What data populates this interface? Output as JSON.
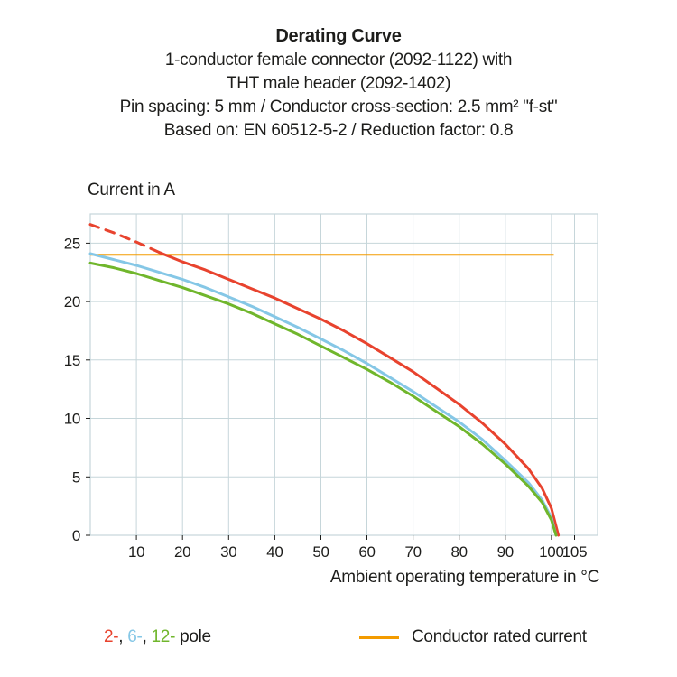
{
  "header": {
    "title": "Derating Curve",
    "subtitle_lines": [
      "1-conductor female connector (2092-1122) with",
      "THT male header (2092-1402)",
      "Pin spacing: 5 mm / Conductor cross-section: 2.5 mm² \"f-st\"",
      "Based on: EN 60512-5-2 / Reduction factor: 0.8"
    ]
  },
  "axis": {
    "y_label": "Current in A",
    "x_label": "Ambient operating temperature in °C"
  },
  "chart_data": {
    "type": "line",
    "title": "Derating Curve",
    "xlabel": "Ambient operating temperature in °C",
    "ylabel": "Current in A",
    "xlim": [
      0,
      110
    ],
    "ylim": [
      0,
      27.5
    ],
    "x_ticks": [
      10,
      20,
      30,
      40,
      50,
      60,
      70,
      80,
      90,
      100,
      105
    ],
    "y_ticks": [
      0,
      5,
      10,
      15,
      20,
      25
    ],
    "grid": true,
    "grid_color": "#c6d6da",
    "tick_color": "#1d1d1b",
    "legend_position": "bottom",
    "rated_line": {
      "name": "Conductor rated current",
      "y": 24,
      "x_start": 0,
      "x_end": 100.5,
      "color": "#f39b00"
    },
    "series": [
      {
        "name": "2-pole",
        "color": "#e8432e",
        "segments": [
          {
            "dashed": true,
            "points": [
              [
                0,
                26.6
              ],
              [
                5,
                25.9
              ],
              [
                10,
                25.1
              ],
              [
                15,
                24.2
              ]
            ]
          },
          {
            "dashed": false,
            "points": [
              [
                15,
                24.2
              ],
              [
                20,
                23.4
              ],
              [
                25,
                22.7
              ],
              [
                30,
                21.9
              ],
              [
                35,
                21.1
              ],
              [
                40,
                20.3
              ],
              [
                45,
                19.4
              ],
              [
                50,
                18.5
              ],
              [
                55,
                17.5
              ],
              [
                60,
                16.4
              ],
              [
                65,
                15.2
              ],
              [
                70,
                14.0
              ],
              [
                75,
                12.6
              ],
              [
                80,
                11.2
              ],
              [
                85,
                9.6
              ],
              [
                90,
                7.8
              ],
              [
                95,
                5.7
              ],
              [
                98,
                4.0
              ],
              [
                100,
                2.3
              ],
              [
                101.5,
                0
              ]
            ]
          }
        ]
      },
      {
        "name": "6-pole",
        "color": "#85c7e6",
        "segments": [
          {
            "dashed": false,
            "points": [
              [
                0,
                24.1
              ],
              [
                5,
                23.6
              ],
              [
                10,
                23.1
              ],
              [
                15,
                22.5
              ],
              [
                20,
                21.9
              ],
              [
                25,
                21.2
              ],
              [
                30,
                20.4
              ],
              [
                35,
                19.6
              ],
              [
                40,
                18.7
              ],
              [
                45,
                17.8
              ],
              [
                50,
                16.8
              ],
              [
                55,
                15.8
              ],
              [
                60,
                14.7
              ],
              [
                65,
                13.5
              ],
              [
                70,
                12.3
              ],
              [
                75,
                11.0
              ],
              [
                80,
                9.7
              ],
              [
                85,
                8.2
              ],
              [
                90,
                6.4
              ],
              [
                95,
                4.5
              ],
              [
                98,
                3.0
              ],
              [
                100,
                1.5
              ],
              [
                101,
                0
              ]
            ]
          }
        ]
      },
      {
        "name": "12-pole",
        "color": "#70b62c",
        "segments": [
          {
            "dashed": false,
            "points": [
              [
                0,
                23.3
              ],
              [
                5,
                22.9
              ],
              [
                10,
                22.4
              ],
              [
                15,
                21.8
              ],
              [
                20,
                21.2
              ],
              [
                25,
                20.5
              ],
              [
                30,
                19.8
              ],
              [
                35,
                19.0
              ],
              [
                40,
                18.1
              ],
              [
                45,
                17.2
              ],
              [
                50,
                16.2
              ],
              [
                55,
                15.2
              ],
              [
                60,
                14.2
              ],
              [
                65,
                13.1
              ],
              [
                70,
                11.9
              ],
              [
                75,
                10.6
              ],
              [
                80,
                9.3
              ],
              [
                85,
                7.8
              ],
              [
                90,
                6.1
              ],
              [
                95,
                4.2
              ],
              [
                98,
                2.8
              ],
              [
                100,
                1.3
              ],
              [
                101,
                0
              ]
            ]
          }
        ]
      }
    ]
  },
  "legend": {
    "pole": {
      "items": [
        {
          "label": "2-",
          "color": "#e8432e"
        },
        {
          "label": "6-",
          "color": "#85c7e6"
        },
        {
          "label": "12-",
          "color": "#70b62c"
        }
      ],
      "sep": ", ",
      "suffix": " pole"
    },
    "rated": {
      "label": "Conductor rated current",
      "color": "#f39b00"
    }
  }
}
